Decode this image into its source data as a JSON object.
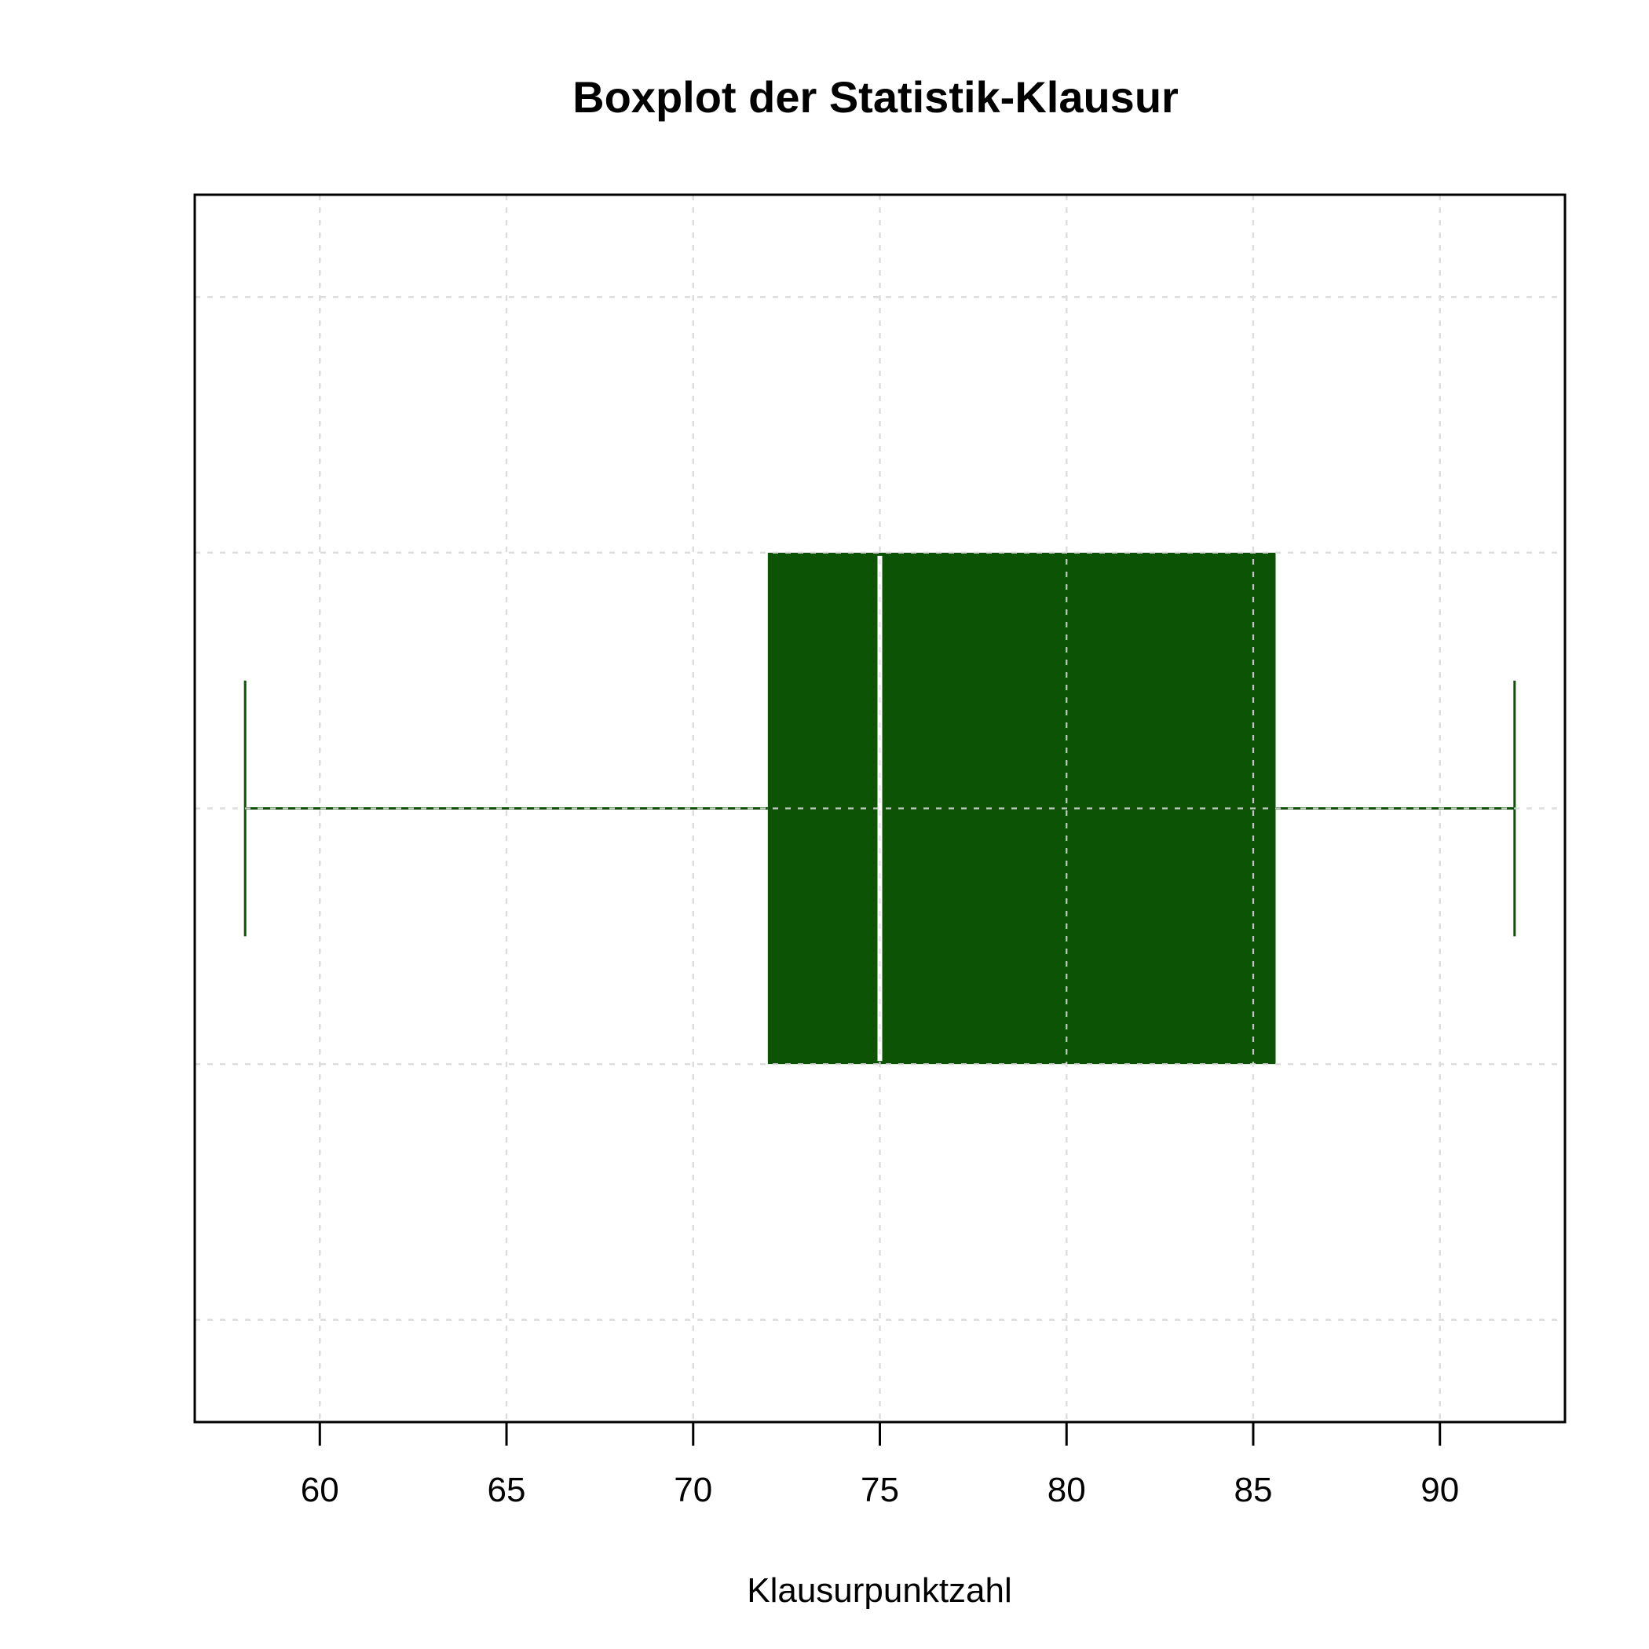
{
  "chart_data": {
    "type": "boxplot",
    "orientation": "horizontal",
    "title": "Boxplot der Statistik-Klausur",
    "xlabel": "Klausurpunktzahl",
    "ylabel": "",
    "xlim": [
      56.65,
      93.35
    ],
    "xticks": [
      60,
      65,
      70,
      75,
      80,
      85,
      90
    ],
    "grid": true,
    "box": {
      "min": 58,
      "q1": 72,
      "median": 75,
      "q3": 85.6,
      "max": 92
    },
    "colors": {
      "box_fill": "#0c5306",
      "median": "#ffffff",
      "whisker": "#0c5306",
      "grid": "#c8c8c8",
      "frame": "#000000"
    }
  }
}
